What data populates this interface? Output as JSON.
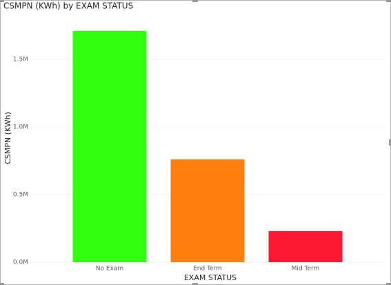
{
  "chart_data": {
    "type": "bar",
    "title": "CSMPN (KWh) by EXAM STATUS",
    "x_label": "EXAM STATUS",
    "y_label": "CSMPN (KWh)",
    "categories": [
      "No Exam",
      "End Term",
      "Mid Term"
    ],
    "values": [
      1710000,
      760000,
      230000
    ],
    "colors": [
      "#33ff11",
      "#ff7f11",
      "#ff1a33"
    ],
    "ylim": [
      0,
      1750000
    ],
    "yticks": [
      {
        "value": 0,
        "label": "0.0M"
      },
      {
        "value": 500000,
        "label": "0.5M"
      },
      {
        "value": 1000000,
        "label": "1.0M"
      },
      {
        "value": 1500000,
        "label": "1.5M"
      }
    ],
    "grid": true
  }
}
